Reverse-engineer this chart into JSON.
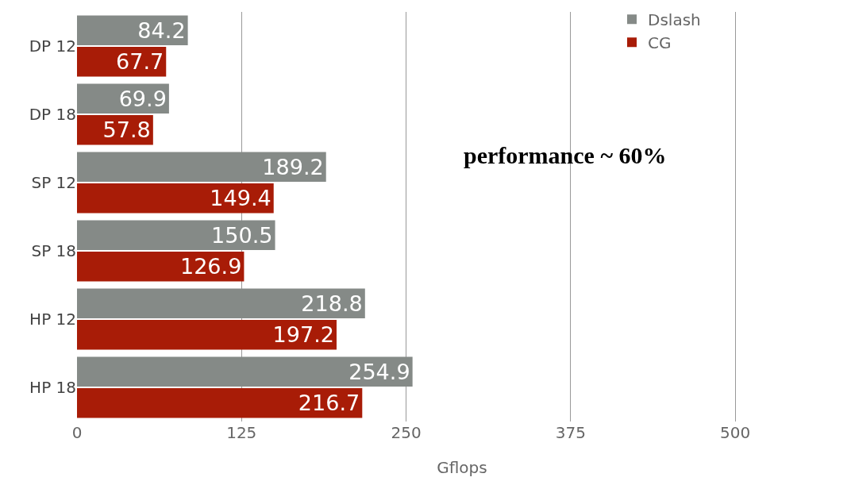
{
  "chart_data": {
    "type": "bar",
    "orientation": "horizontal",
    "xlabel": "Gflops",
    "categories": [
      "DP 12",
      "DP 18",
      "SP 12",
      "SP 18",
      "HP 12",
      "HP 18"
    ],
    "series": [
      {
        "name": "Dslash",
        "color": "#858a87",
        "values": [
          84.2,
          69.9,
          189.2,
          150.5,
          218.8,
          254.9
        ]
      },
      {
        "name": "CG",
        "color": "#a81c07",
        "values": [
          67.7,
          57.8,
          149.4,
          126.9,
          197.2,
          216.7
        ]
      }
    ],
    "xlim": [
      0,
      585
    ],
    "xticks": [
      0,
      125,
      250,
      375,
      500
    ],
    "grid": "x",
    "legend": "top right",
    "data_labels": true,
    "annotations": [
      "performance ~ 60%"
    ]
  }
}
